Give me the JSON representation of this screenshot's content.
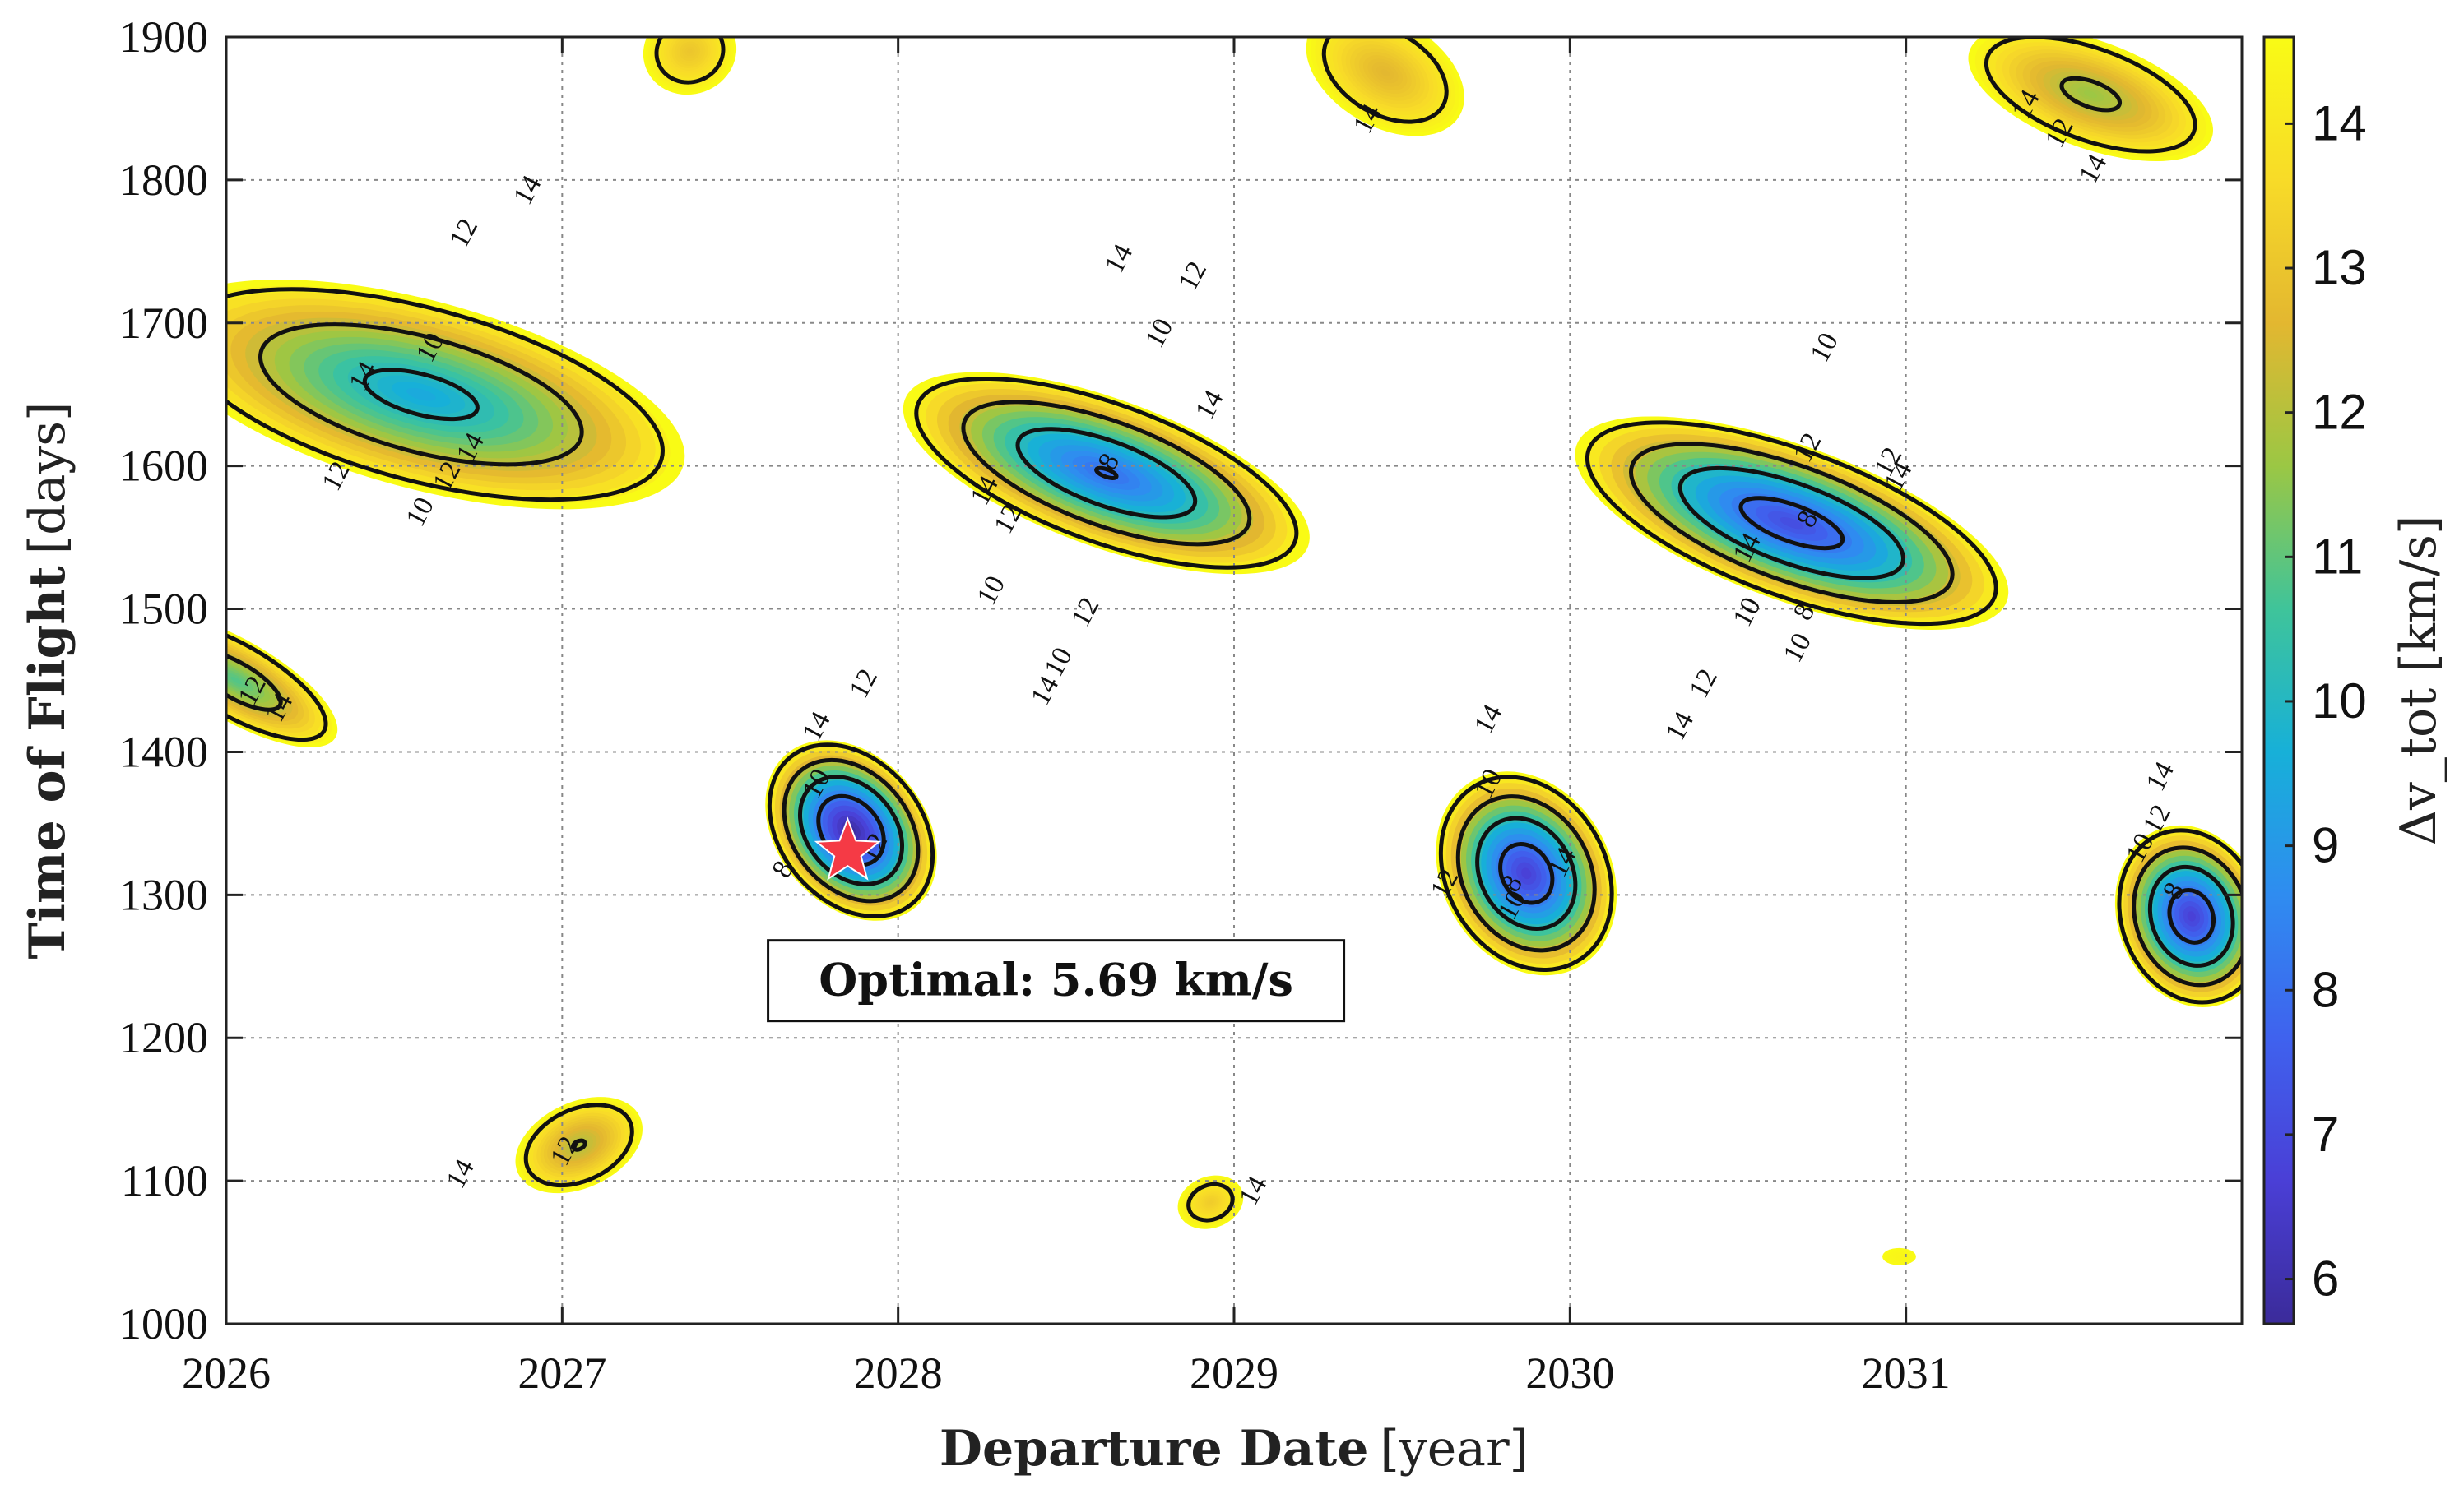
{
  "chart_data": {
    "type": "contour",
    "title": "",
    "xlabel": {
      "bold": "Departure Date",
      "unit": "[year]"
    },
    "ylabel": {
      "bold": "Time of Flight",
      "unit": "[days]"
    },
    "xlim": [
      2026,
      2032
    ],
    "ylim": [
      1000,
      1900
    ],
    "xticks": [
      "2026",
      "2027",
      "2028",
      "2029",
      "2030",
      "2031"
    ],
    "yticks": [
      "1000",
      "1100",
      "1200",
      "1300",
      "1400",
      "1500",
      "1600",
      "1700",
      "1800",
      "1900"
    ],
    "grid": true,
    "colorbar": {
      "label": "Δv_tot [km/s]",
      "range": [
        5.69,
        14.6
      ],
      "ticks": [
        "6",
        "7",
        "8",
        "9",
        "10",
        "11",
        "12",
        "13",
        "14"
      ],
      "colors": [
        "#3b2b9a",
        "#4a3fd6",
        "#3f62ee",
        "#2f8cf0",
        "#17b0d8",
        "#3fc49a",
        "#9bc744",
        "#e3b730",
        "#f8db28",
        "#f9fb15"
      ]
    },
    "contour_levels": [
      8,
      10,
      12,
      14
    ],
    "basins": [
      {
        "name": "window-2026",
        "cx": 2026.58,
        "cy": 1650,
        "rx": 0.28,
        "ry": 190,
        "rotation": -75,
        "min": 9.4
      },
      {
        "name": "window-2026-edge",
        "cx": 2026.03,
        "cy": 1450,
        "rx": 0.12,
        "ry": 80,
        "rotation": -60,
        "min": 10.8
      },
      {
        "name": "window-2028",
        "cx": 2027.86,
        "cy": 1345,
        "rx": 0.22,
        "ry": 70,
        "rotation": -40,
        "min": 5.69
      },
      {
        "name": "window-2028-upper",
        "cx": 2028.62,
        "cy": 1595,
        "rx": 0.22,
        "ry": 150,
        "rotation": -70,
        "min": 7.9
      },
      {
        "name": "window-2030",
        "cx": 2029.87,
        "cy": 1315,
        "rx": 0.25,
        "ry": 75,
        "rotation": -30,
        "min": 6.6
      },
      {
        "name": "window-2030-upper",
        "cx": 2030.66,
        "cy": 1560,
        "rx": 0.23,
        "ry": 160,
        "rotation": -70,
        "min": 7.0
      },
      {
        "name": "window-2031",
        "cx": 2031.85,
        "cy": 1285,
        "rx": 0.22,
        "ry": 65,
        "rotation": -20,
        "min": 6.6
      },
      {
        "name": "window-2031-top",
        "cx": 2031.55,
        "cy": 1860,
        "rx": 0.16,
        "ry": 90,
        "rotation": -70,
        "min": 11.6
      },
      {
        "name": "island-2027",
        "cx": 2027.05,
        "cy": 1125,
        "rx": 0.2,
        "ry": 30,
        "rotation": -25,
        "min": 11.9
      },
      {
        "name": "island-2029",
        "cx": 2028.93,
        "cy": 1085,
        "rx": 0.1,
        "ry": 18,
        "rotation": -20,
        "min": 13.2
      },
      {
        "name": "top-2027",
        "cx": 2027.38,
        "cy": 1890,
        "rx": 0.14,
        "ry": 30,
        "rotation": -20,
        "min": 13.0
      },
      {
        "name": "top-2029",
        "cx": 2029.45,
        "cy": 1875,
        "rx": 0.16,
        "ry": 60,
        "rotation": -60,
        "min": 12.6
      },
      {
        "name": "speck-2031",
        "cx": 2030.98,
        "cy": 1047,
        "rx": 0.05,
        "ry": 6,
        "rotation": 0,
        "min": 14.4
      }
    ],
    "contour_labels": [
      {
        "text": "14",
        "x": 2026.92,
        "y": 1790
      },
      {
        "text": "12",
        "x": 2026.73,
        "y": 1760
      },
      {
        "text": "10",
        "x": 2026.63,
        "y": 1680
      },
      {
        "text": "14",
        "x": 2026.43,
        "y": 1660
      },
      {
        "text": "12",
        "x": 2026.35,
        "y": 1590
      },
      {
        "text": "10",
        "x": 2026.6,
        "y": 1565
      },
      {
        "text": "12",
        "x": 2026.68,
        "y": 1590
      },
      {
        "text": "14",
        "x": 2026.75,
        "y": 1610
      },
      {
        "text": "12",
        "x": 2026.1,
        "y": 1440
      },
      {
        "text": "14",
        "x": 2026.18,
        "y": 1428
      },
      {
        "text": "14",
        "x": 2027.78,
        "y": 1415
      },
      {
        "text": "12",
        "x": 2027.92,
        "y": 1445
      },
      {
        "text": "10",
        "x": 2027.78,
        "y": 1375
      },
      {
        "text": "8",
        "x": 2027.68,
        "y": 1315
      },
      {
        "text": "12",
        "x": 2027.95,
        "y": 1330
      },
      {
        "text": "14",
        "x": 2028.68,
        "y": 1742
      },
      {
        "text": "12",
        "x": 2028.9,
        "y": 1730
      },
      {
        "text": "10",
        "x": 2028.8,
        "y": 1690
      },
      {
        "text": "14",
        "x": 2028.95,
        "y": 1640
      },
      {
        "text": "8",
        "x": 2028.65,
        "y": 1600
      },
      {
        "text": "14",
        "x": 2028.28,
        "y": 1580
      },
      {
        "text": "10",
        "x": 2028.3,
        "y": 1510
      },
      {
        "text": "12",
        "x": 2028.35,
        "y": 1560
      },
      {
        "text": "12",
        "x": 2028.58,
        "y": 1495
      },
      {
        "text": "10",
        "x": 2028.5,
        "y": 1460
      },
      {
        "text": "14",
        "x": 2028.46,
        "y": 1440
      },
      {
        "text": "14",
        "x": 2029.42,
        "y": 1840
      },
      {
        "text": "14",
        "x": 2029.78,
        "y": 1420
      },
      {
        "text": "10",
        "x": 2029.78,
        "y": 1375
      },
      {
        "text": "12",
        "x": 2029.65,
        "y": 1305
      },
      {
        "text": "8",
        "x": 2029.85,
        "y": 1305
      },
      {
        "text": "10",
        "x": 2029.85,
        "y": 1290
      },
      {
        "text": "14",
        "x": 2030.0,
        "y": 1320
      },
      {
        "text": "14",
        "x": 2030.55,
        "y": 1540
      },
      {
        "text": "10",
        "x": 2030.55,
        "y": 1495
      },
      {
        "text": "12",
        "x": 2030.42,
        "y": 1445
      },
      {
        "text": "14",
        "x": 2030.35,
        "y": 1415
      },
      {
        "text": "10",
        "x": 2030.78,
        "y": 1680
      },
      {
        "text": "12",
        "x": 2030.73,
        "y": 1610
      },
      {
        "text": "8",
        "x": 2030.73,
        "y": 1560
      },
      {
        "text": "8",
        "x": 2030.72,
        "y": 1495
      },
      {
        "text": "10",
        "x": 2030.7,
        "y": 1470
      },
      {
        "text": "14",
        "x": 2031.0,
        "y": 1590
      },
      {
        "text": "12",
        "x": 2030.97,
        "y": 1600
      },
      {
        "text": "14",
        "x": 2031.38,
        "y": 1850
      },
      {
        "text": "12",
        "x": 2031.48,
        "y": 1830
      },
      {
        "text": "14",
        "x": 2031.58,
        "y": 1805
      },
      {
        "text": "14",
        "x": 2031.78,
        "y": 1380
      },
      {
        "text": "12",
        "x": 2031.77,
        "y": 1350
      },
      {
        "text": "10",
        "x": 2031.72,
        "y": 1330
      },
      {
        "text": "8",
        "x": 2031.82,
        "y": 1300
      },
      {
        "text": "12",
        "x": 2027.03,
        "y": 1118
      },
      {
        "text": "14",
        "x": 2026.72,
        "y": 1102
      },
      {
        "text": "14",
        "x": 2029.08,
        "y": 1090
      }
    ],
    "optimal": {
      "x": 2027.85,
      "y": 1330,
      "label": "Optimal:  5.69 km/s",
      "marker_color": "#f53a45"
    },
    "annotation_anchor": {
      "x": 2028.47,
      "y": 1240
    }
  }
}
